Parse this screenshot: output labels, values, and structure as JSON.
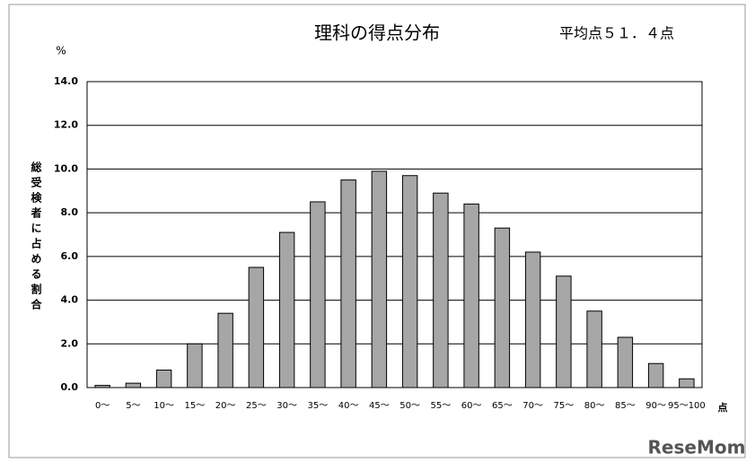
{
  "chart_data": {
    "type": "bar",
    "title": "理科の得点分布",
    "subtitle": "平均点５１．４点",
    "y_unit": "%",
    "ylabel": "総受検者に占める割合",
    "x_unit": "点",
    "watermark": "ReseMom",
    "categories": [
      "0〜",
      "5〜",
      "10〜",
      "15〜",
      "20〜",
      "25〜",
      "30〜",
      "35〜",
      "40〜",
      "45〜",
      "50〜",
      "55〜",
      "60〜",
      "65〜",
      "70〜",
      "75〜",
      "80〜",
      "85〜",
      "90〜",
      "95〜100"
    ],
    "values": [
      0.1,
      0.2,
      0.8,
      2.0,
      3.4,
      5.5,
      7.1,
      8.5,
      9.5,
      9.9,
      9.7,
      8.9,
      8.4,
      7.3,
      6.2,
      5.1,
      3.5,
      2.3,
      1.1,
      0.4
    ],
    "color": "#a6a6a6",
    "ylim": [
      0,
      14
    ],
    "yticks": [
      {
        "value": 0,
        "label": "0.0"
      },
      {
        "value": 2,
        "label": "2.0"
      },
      {
        "value": 4,
        "label": "4.0"
      },
      {
        "value": 6,
        "label": "6.0"
      },
      {
        "value": 8,
        "label": "8.0"
      },
      {
        "value": 10,
        "label": "10.0"
      },
      {
        "value": 12,
        "label": "12.0"
      },
      {
        "value": 14,
        "label": "14.0"
      }
    ],
    "grid": true
  }
}
